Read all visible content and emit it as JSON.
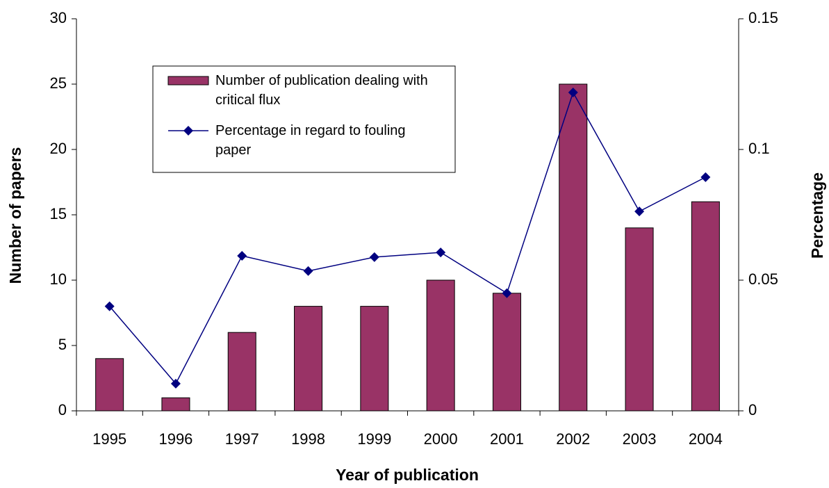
{
  "chart_data": {
    "type": "bar_line",
    "xlabel": "Year of publication",
    "ylabel": "Number of papers",
    "y2label": "Percentage",
    "categories": [
      "1995",
      "1996",
      "1997",
      "1998",
      "1999",
      "2000",
      "2001",
      "2002",
      "2003",
      "2004"
    ],
    "series": [
      {
        "name": "Number of publication dealing with critical flux",
        "type": "bar",
        "color": "#993366",
        "values": [
          4,
          1,
          6,
          8,
          8,
          10,
          9,
          25,
          14,
          16
        ]
      },
      {
        "name": "Percentage in regard to fouling paper",
        "type": "line",
        "color": "#000080",
        "axis": "y2",
        "values": [
          0.04,
          0.0104,
          0.0593,
          0.0535,
          0.0588,
          0.0606,
          0.045,
          0.1218,
          0.0763,
          0.0894
        ]
      }
    ],
    "ylim": [
      0,
      30
    ],
    "yticks": [
      0,
      5,
      10,
      15,
      20,
      25,
      30
    ],
    "y2lim": [
      0,
      0.15
    ],
    "y2ticks": [
      0,
      0.05,
      0.1,
      0.15
    ],
    "grid": false
  }
}
